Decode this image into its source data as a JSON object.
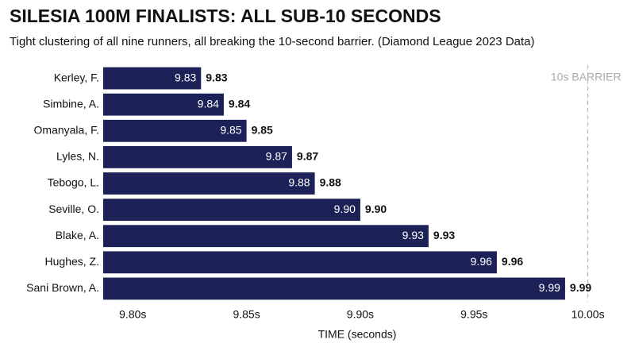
{
  "chart_data": {
    "type": "barh",
    "title": "SILESIA 100M FINALISTS: ALL SUB-10 SECONDS",
    "subtitle": "Tight clustering of all nine runners, all breaking the 10-second barrier. (Diamond League 2023 Data)",
    "categories": [
      "Kerley, F.",
      "Simbine, A.",
      "Omanyala, F.",
      "Lyles, N.",
      "Tebogo, L.",
      "Seville, O.",
      "Blake, A.",
      "Hughes, Z.",
      "Sani Brown, A."
    ],
    "values": [
      9.83,
      9.84,
      9.85,
      9.87,
      9.88,
      9.9,
      9.93,
      9.96,
      9.99
    ],
    "value_labels": [
      "9.83",
      "9.84",
      "9.85",
      "9.87",
      "9.88",
      "9.90",
      "9.93",
      "9.96",
      "9.99"
    ],
    "color": "#1c2257",
    "xlim": [
      9.787,
      10.012
    ],
    "xticks": [
      {
        "value": 9.8,
        "label": "9.80s"
      },
      {
        "value": 9.85,
        "label": "9.85s"
      },
      {
        "value": 9.9,
        "label": "9.90s"
      },
      {
        "value": 9.95,
        "label": "9.95s"
      },
      {
        "value": 10.0,
        "label": "10.00s"
      }
    ],
    "xlabel": "TIME (seconds)",
    "annotation": {
      "value": 10.0,
      "label": "10s BARRIER"
    }
  }
}
